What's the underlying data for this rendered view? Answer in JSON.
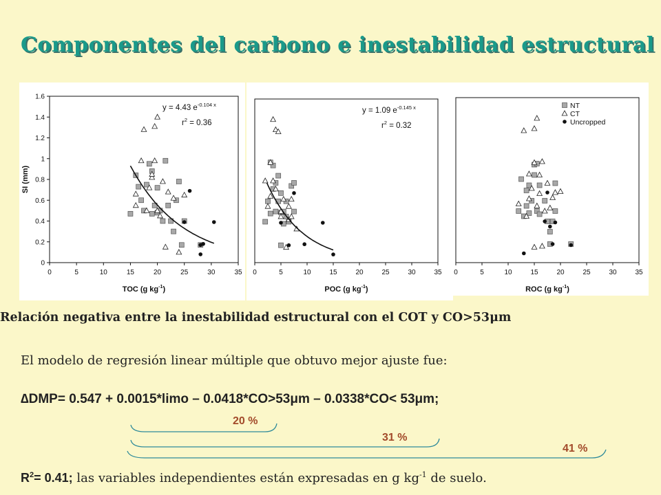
{
  "title": "Componentes del carbono e inestabilidad estructural",
  "subtitle": "Relación negativa  entre la inestabilidad estructural con el COT y CO>53μm",
  "intro": "El modelo de regresión linear múltiple que obtuvo mejor ajuste fue:",
  "equation": "∆DMP= 0.547 + 0.0015*limo – 0.0418*CO>53μm – 0.0338*CO< 53μm;",
  "percentages": [
    "20 %",
    "31 %",
    "41 %"
  ],
  "footer": {
    "r2_label": "R",
    "r2_sup": "2",
    "r2_value": "= 0.41;",
    "text": " las variables independientes están expresadas en g kg",
    "text_sup": "-1",
    "text_end": " de suelo."
  },
  "colors": {
    "title": "#1a9a8a",
    "background": "#fbf7c9",
    "percent": "#a24a2a"
  },
  "chart_data": [
    {
      "type": "scatter",
      "xlabel": "TOC (g kg",
      "xlabel_sup": "-1",
      "xlabel_end": ")",
      "ylabel": "SI (mm)",
      "xlim": [
        0,
        35
      ],
      "ylim": [
        0,
        1.6
      ],
      "xticks": [
        "0",
        "5",
        "10",
        "15",
        "20",
        "25",
        "30",
        "35"
      ],
      "yticks": [
        "0",
        "0.2",
        "0.4",
        "0.6",
        "0.8",
        "1",
        "1.2",
        "1.4",
        "1.6"
      ],
      "equation": "y = 4.43  e",
      "equation_sup": "-0.104 x",
      "r2": "r",
      "r2_sup": "2",
      "r2_val": " = 0.36",
      "fit": {
        "a": 4.43,
        "b": -0.104,
        "x_range": [
          15,
          30.5
        ]
      },
      "series": [
        {
          "marker": "square",
          "points": [
            [
              15,
              0.47
            ],
            [
              16,
              0.84
            ],
            [
              16.5,
              0.73
            ],
            [
              17,
              0.6
            ],
            [
              17.5,
              0.5
            ],
            [
              18,
              0.75
            ],
            [
              18.5,
              0.95
            ],
            [
              19,
              0.47
            ],
            [
              19,
              0.88
            ],
            [
              19.5,
              0.55
            ],
            [
              20,
              0.72
            ],
            [
              20,
              0.48
            ],
            [
              20.5,
              0.5
            ],
            [
              21,
              0.4
            ],
            [
              21.5,
              0.98
            ],
            [
              22,
              0.55
            ],
            [
              22.5,
              0.4
            ],
            [
              23,
              0.3
            ],
            [
              23.5,
              0.6
            ],
            [
              24,
              0.78
            ],
            [
              24.5,
              0.17
            ],
            [
              25,
              0.4
            ],
            [
              28,
              0.17
            ]
          ]
        },
        {
          "marker": "triangle",
          "points": [
            [
              16,
              0.55
            ],
            [
              16,
              0.66
            ],
            [
              17,
              0.98
            ],
            [
              17.5,
              1.28
            ],
            [
              18,
              0.5
            ],
            [
              18.5,
              0.72
            ],
            [
              19,
              0.82
            ],
            [
              19,
              0.85
            ],
            [
              19.5,
              0.98
            ],
            [
              19.5,
              1.31
            ],
            [
              20,
              1.4
            ],
            [
              20,
              0.5
            ],
            [
              20.5,
              0.45
            ],
            [
              21,
              0.78
            ],
            [
              21.5,
              0.15
            ],
            [
              22,
              0.68
            ],
            [
              23,
              0.62
            ],
            [
              24,
              0.1
            ],
            [
              25,
              0.65
            ]
          ]
        },
        {
          "marker": "circle",
          "points": [
            [
              25,
              0.39
            ],
            [
              26,
              0.69
            ],
            [
              28,
              0.08
            ],
            [
              28,
              0.17
            ],
            [
              28.5,
              0.18
            ],
            [
              30.5,
              0.39
            ]
          ]
        }
      ]
    },
    {
      "type": "scatter",
      "xlabel": "POC (g kg",
      "xlabel_sup": "-1",
      "xlabel_end": ")",
      "ylabel": "",
      "xlim": [
        0,
        35
      ],
      "ylim": [
        0,
        1.6
      ],
      "xticks": [
        "0",
        "5",
        "10",
        "15",
        "20",
        "25",
        "30",
        "35"
      ],
      "yticks": [],
      "equation": "y = 1.09  e",
      "equation_sup": "-0.145 x",
      "r2": "r",
      "r2_sup": "2",
      "r2_val": " = 0.32",
      "fit": {
        "a": 1.09,
        "b": -0.145,
        "x_range": [
          2.3,
          15
        ]
      },
      "series": [
        {
          "marker": "square",
          "points": [
            [
              2,
              0.4
            ],
            [
              2.5,
              0.6
            ],
            [
              3,
              0.98
            ],
            [
              3.5,
              0.72
            ],
            [
              3.5,
              0.95
            ],
            [
              4,
              0.5
            ],
            [
              4,
              0.78
            ],
            [
              4.5,
              0.85
            ],
            [
              4.5,
              0.6
            ],
            [
              5,
              0.68
            ],
            [
              5,
              0.49
            ],
            [
              5,
              0.17
            ],
            [
              5.5,
              0.38
            ],
            [
              5.5,
              0.5
            ],
            [
              6,
              0.45
            ],
            [
              6,
              0.6
            ],
            [
              6.5,
              0.4
            ],
            [
              7,
              0.75
            ],
            [
              7.5,
              0.78
            ],
            [
              7.5,
              0.5
            ],
            [
              3,
              0.48
            ]
          ]
        },
        {
          "marker": "triangle",
          "points": [
            [
              2,
              0.8
            ],
            [
              2.5,
              0.55
            ],
            [
              3,
              0.65
            ],
            [
              3,
              0.98
            ],
            [
              3.5,
              1.4
            ],
            [
              4,
              0.72
            ],
            [
              4,
              1.3
            ],
            [
              4.5,
              1.28
            ],
            [
              5,
              0.5
            ],
            [
              5,
              0.45
            ],
            [
              5.5,
              0.62
            ],
            [
              6,
              0.15
            ],
            [
              6.5,
              0.42
            ],
            [
              6.5,
              0.55
            ],
            [
              7,
              0.62
            ],
            [
              7,
              0.45
            ],
            [
              8,
              0.33
            ],
            [
              3.5,
              0.8
            ]
          ]
        },
        {
          "marker": "circle",
          "points": [
            [
              5,
              0.39
            ],
            [
              6.5,
              0.17
            ],
            [
              7.5,
              0.68
            ],
            [
              9.5,
              0.18
            ],
            [
              13,
              0.39
            ],
            [
              15,
              0.08
            ]
          ]
        }
      ]
    },
    {
      "type": "scatter",
      "xlabel": "ROC (g kg",
      "xlabel_sup": "-1",
      "xlabel_end": ")",
      "ylabel": "",
      "xlim": [
        0,
        35
      ],
      "ylim": [
        0,
        1.6
      ],
      "xticks": [
        "0",
        "5",
        "10",
        "15",
        "20",
        "25",
        "30",
        "35"
      ],
      "yticks": [],
      "legend": [
        {
          "marker": "square",
          "label": "NT"
        },
        {
          "marker": "triangle",
          "label": "CT"
        },
        {
          "marker": "circle",
          "label": "Uncropped"
        }
      ],
      "series": [
        {
          "marker": "square",
          "points": [
            [
              12,
              0.5
            ],
            [
              12.5,
              0.81
            ],
            [
              13,
              0.45
            ],
            [
              13.5,
              0.7
            ],
            [
              14,
              0.75
            ],
            [
              14,
              0.48
            ],
            [
              14.5,
              0.6
            ],
            [
              15,
              0.85
            ],
            [
              15,
              0.95
            ],
            [
              15.5,
              0.5
            ],
            [
              16,
              0.47
            ],
            [
              16,
              0.75
            ],
            [
              17,
              0.6
            ],
            [
              17.5,
              0.4
            ],
            [
              18,
              0.3
            ],
            [
              18,
              0.18
            ],
            [
              18.5,
              0.4
            ],
            [
              19,
              0.77
            ],
            [
              19,
              0.5
            ],
            [
              22,
              0.18
            ],
            [
              13.5,
              0.55
            ],
            [
              15.5,
              0.96
            ]
          ]
        },
        {
          "marker": "triangle",
          "points": [
            [
              12,
              0.57
            ],
            [
              13,
              1.28
            ],
            [
              13.5,
              0.45
            ],
            [
              14,
              0.62
            ],
            [
              14,
              0.86
            ],
            [
              14.5,
              0.72
            ],
            [
              15,
              0.97
            ],
            [
              15,
              1.3
            ],
            [
              15.5,
              0.55
            ],
            [
              15.5,
              1.4
            ],
            [
              16,
              0.85
            ],
            [
              16,
              0.67
            ],
            [
              16.5,
              0.98
            ],
            [
              17,
              0.5
            ],
            [
              17.5,
              0.77
            ],
            [
              18,
              0.53
            ],
            [
              18.5,
              0.63
            ],
            [
              19,
              0.68
            ],
            [
              20,
              0.69
            ],
            [
              15,
              0.15
            ],
            [
              16.5,
              0.16
            ]
          ]
        },
        {
          "marker": "circle",
          "points": [
            [
              13,
              0.09
            ],
            [
              17,
              0.4
            ],
            [
              17.5,
              0.68
            ],
            [
              18,
              0.35
            ],
            [
              18.5,
              0.18
            ],
            [
              19,
              0.39
            ],
            [
              22,
              0.17
            ]
          ]
        }
      ]
    }
  ]
}
